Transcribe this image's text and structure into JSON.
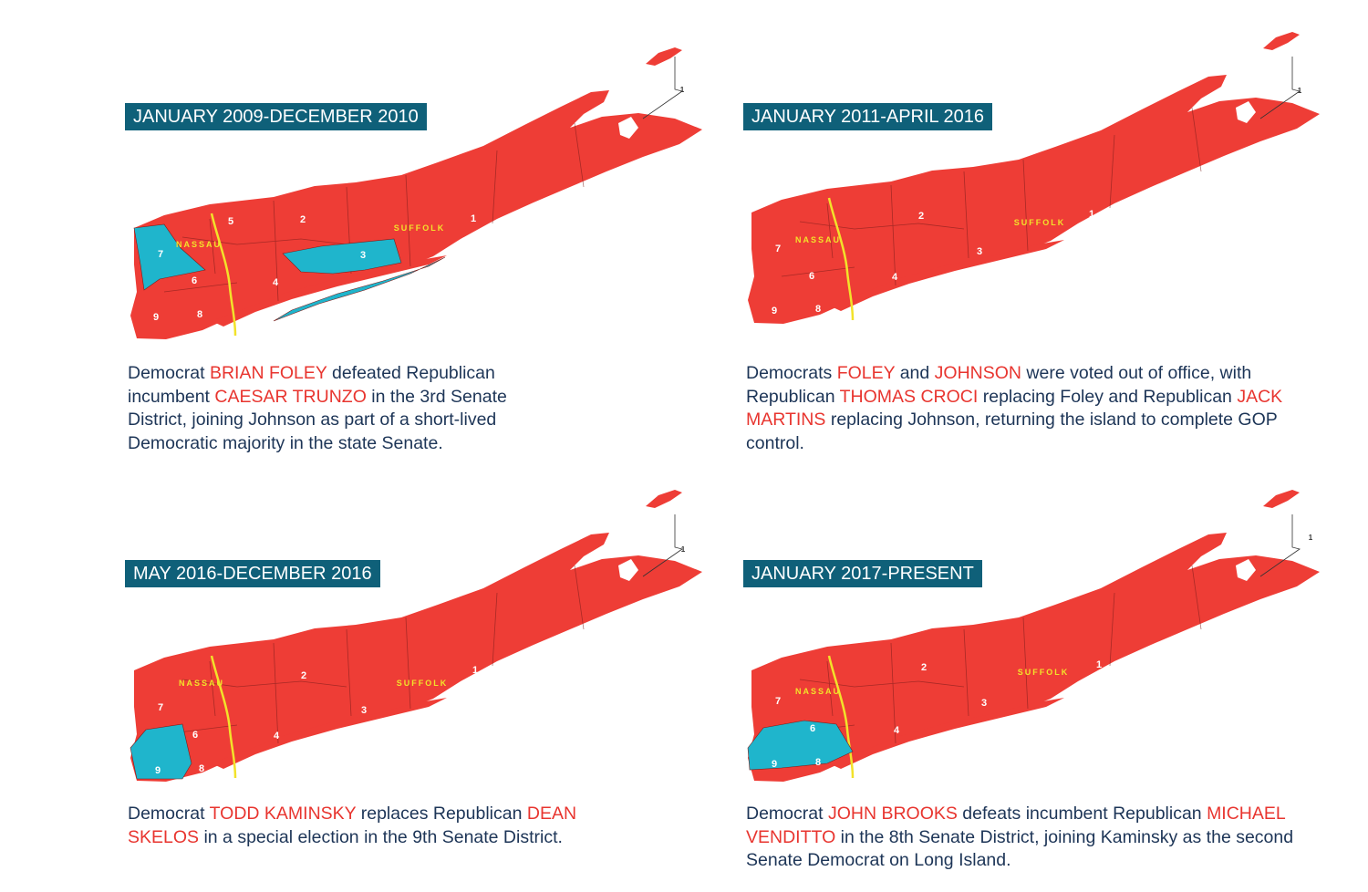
{
  "panels": [
    {
      "period": "JANUARY 2009-DECEMBER 2010",
      "map": {
        "county_labels": [
          "NASSAU",
          "SUFFOLK"
        ],
        "district_labels": [
          "7",
          "5",
          "2",
          "3",
          "4",
          "6",
          "8",
          "9",
          "1",
          "1"
        ]
      },
      "caption": [
        "Democrat ",
        "BRIAN FOLEY",
        " defeated Republican incumbent ",
        "CAESAR TRUNZO",
        " in the 3rd Senate District, joining Johnson as part of a short-lived Democratic majority in the state Senate."
      ]
    },
    {
      "period": "JANUARY 2011-APRIL 2016",
      "map": {
        "county_labels": [
          "NASSAU",
          "SUFFOLK"
        ],
        "district_labels": [
          "7",
          "2",
          "3",
          "4",
          "6",
          "8",
          "9",
          "1",
          "1"
        ]
      },
      "caption": [
        "Democrats ",
        "FOLEY",
        " and ",
        "JOHNSON",
        " were voted out of office, with Republican ",
        "THOMAS CROCI",
        " replacing Foley and Republican ",
        "JACK MARTINS",
        " replacing Johnson, returning the island to complete GOP control."
      ]
    },
    {
      "period": "MAY 2016-DECEMBER 2016",
      "map": {
        "county_labels": [
          "NASSAU",
          "SUFFOLK"
        ],
        "district_labels": [
          "7",
          "2",
          "3",
          "4",
          "6",
          "8",
          "9",
          "1",
          "1"
        ]
      },
      "caption": [
        "Democrat ",
        "TODD KAMINSKY",
        " replaces Republican ",
        "DEAN SKELOS",
        " in a special election in the 9th Senate District."
      ]
    },
    {
      "period": "JANUARY 2017-PRESENT",
      "map": {
        "county_labels": [
          "NASSAU",
          "SUFFOLK"
        ],
        "district_labels": [
          "7",
          "2",
          "3",
          "4",
          "6",
          "8",
          "9",
          "1",
          "1"
        ]
      },
      "caption": [
        "Democrat ",
        "JOHN BROOKS",
        " defeats incumbent Republican ",
        "MICHAEL VENDITTO",
        " in the 8th Senate District, joining Kaminsky as the second Senate Democrat on Long Island."
      ]
    }
  ]
}
